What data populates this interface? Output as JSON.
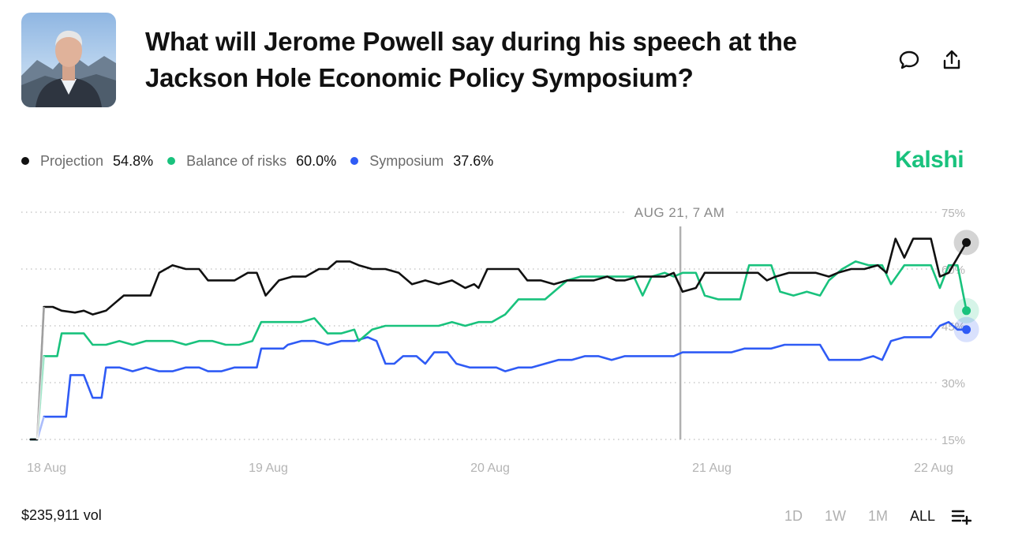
{
  "header": {
    "title": "What will Jerome Powell say during his speech at the Jackson Hole Economic Policy Symposium?",
    "comment_icon": "comment-icon",
    "share_icon": "share-icon"
  },
  "brand": "Kalshi",
  "legend": [
    {
      "name": "Projection",
      "value": "54.8%",
      "color": "#111111"
    },
    {
      "name": "Balance of risks",
      "value": "60.0%",
      "color": "#19c27d"
    },
    {
      "name": "Symposium",
      "value": "37.6%",
      "color": "#2f5bf5"
    }
  ],
  "footer": {
    "volume": "$235,911 vol",
    "ranges": [
      "1D",
      "1W",
      "1M",
      "ALL"
    ],
    "active_range": "ALL",
    "menu_icon": "list-add-icon"
  },
  "chart_data": {
    "type": "line",
    "x_unit": "days",
    "x_ticks": [
      {
        "label": "18 Aug",
        "x": 0
      },
      {
        "label": "19 Aug",
        "x": 1
      },
      {
        "label": "20 Aug",
        "x": 2
      },
      {
        "label": "21 Aug",
        "x": 3
      },
      {
        "label": "22 Aug",
        "x": 4
      }
    ],
    "y_ticks": [
      {
        "label": "15%",
        "value": 15
      },
      {
        "label": "30%",
        "value": 30
      },
      {
        "label": "45%",
        "value": 45
      },
      {
        "label": "60%",
        "value": 60
      },
      {
        "label": "75%",
        "value": 75
      }
    ],
    "ylim": [
      15,
      75
    ],
    "xlim": [
      -0.04,
      4.1
    ],
    "hover": {
      "label": "AUG 21, 7 AM",
      "x": 2.89
    },
    "series": [
      {
        "name": "Projection",
        "color": "#111111",
        "points": [
          [
            -0.04,
            15
          ],
          [
            -0.01,
            15
          ],
          [
            0.02,
            50
          ],
          [
            0.06,
            50
          ],
          [
            0.1,
            49
          ],
          [
            0.16,
            48.5
          ],
          [
            0.2,
            49
          ],
          [
            0.24,
            48
          ],
          [
            0.3,
            49
          ],
          [
            0.34,
            51
          ],
          [
            0.38,
            53
          ],
          [
            0.44,
            53
          ],
          [
            0.5,
            53
          ],
          [
            0.54,
            59
          ],
          [
            0.6,
            61
          ],
          [
            0.66,
            60
          ],
          [
            0.72,
            60
          ],
          [
            0.76,
            57
          ],
          [
            0.82,
            57
          ],
          [
            0.88,
            57
          ],
          [
            0.94,
            59
          ],
          [
            0.98,
            59
          ],
          [
            1.02,
            53
          ],
          [
            1.08,
            57
          ],
          [
            1.14,
            58
          ],
          [
            1.2,
            58
          ],
          [
            1.26,
            60
          ],
          [
            1.3,
            60
          ],
          [
            1.34,
            62
          ],
          [
            1.4,
            62
          ],
          [
            1.44,
            61
          ],
          [
            1.5,
            60
          ],
          [
            1.56,
            60
          ],
          [
            1.62,
            59
          ],
          [
            1.68,
            56
          ],
          [
            1.74,
            57
          ],
          [
            1.8,
            56
          ],
          [
            1.86,
            57
          ],
          [
            1.92,
            55
          ],
          [
            1.96,
            56
          ],
          [
            1.98,
            55
          ],
          [
            2.02,
            60
          ],
          [
            2.1,
            60
          ],
          [
            2.16,
            60
          ],
          [
            2.2,
            57
          ],
          [
            2.26,
            57
          ],
          [
            2.32,
            56
          ],
          [
            2.38,
            57
          ],
          [
            2.44,
            57
          ],
          [
            2.5,
            57
          ],
          [
            2.56,
            58
          ],
          [
            2.6,
            57
          ],
          [
            2.64,
            57
          ],
          [
            2.7,
            58
          ],
          [
            2.76,
            58
          ],
          [
            2.82,
            58
          ],
          [
            2.86,
            59
          ],
          [
            2.9,
            54
          ],
          [
            2.96,
            55
          ],
          [
            3.0,
            59
          ],
          [
            3.06,
            59
          ],
          [
            3.12,
            59
          ],
          [
            3.18,
            59
          ],
          [
            3.24,
            59
          ],
          [
            3.28,
            57
          ],
          [
            3.32,
            58
          ],
          [
            3.38,
            59
          ],
          [
            3.44,
            59
          ],
          [
            3.5,
            59
          ],
          [
            3.56,
            58
          ],
          [
            3.6,
            59
          ],
          [
            3.66,
            60
          ],
          [
            3.72,
            60
          ],
          [
            3.78,
            61
          ],
          [
            3.82,
            59
          ],
          [
            3.86,
            68
          ],
          [
            3.9,
            63
          ],
          [
            3.94,
            68
          ],
          [
            3.98,
            68
          ],
          [
            4.02,
            68
          ],
          [
            4.06,
            58
          ],
          [
            4.1,
            59
          ],
          [
            4.18,
            67
          ]
        ]
      },
      {
        "name": "Balance of risks",
        "color": "#19c27d",
        "points": [
          [
            -0.04,
            15
          ],
          [
            -0.01,
            15
          ],
          [
            0.02,
            37
          ],
          [
            0.08,
            37
          ],
          [
            0.1,
            43
          ],
          [
            0.16,
            43
          ],
          [
            0.2,
            43
          ],
          [
            0.24,
            40
          ],
          [
            0.3,
            40
          ],
          [
            0.36,
            41
          ],
          [
            0.42,
            40
          ],
          [
            0.48,
            41
          ],
          [
            0.54,
            41
          ],
          [
            0.6,
            41
          ],
          [
            0.66,
            40
          ],
          [
            0.72,
            41
          ],
          [
            0.78,
            41
          ],
          [
            0.84,
            40
          ],
          [
            0.9,
            40
          ],
          [
            0.96,
            41
          ],
          [
            1.0,
            46
          ],
          [
            1.06,
            46
          ],
          [
            1.12,
            46
          ],
          [
            1.18,
            46
          ],
          [
            1.24,
            47
          ],
          [
            1.3,
            43
          ],
          [
            1.36,
            43
          ],
          [
            1.42,
            44
          ],
          [
            1.44,
            41
          ],
          [
            1.5,
            44
          ],
          [
            1.56,
            45
          ],
          [
            1.62,
            45
          ],
          [
            1.68,
            45
          ],
          [
            1.74,
            45
          ],
          [
            1.8,
            45
          ],
          [
            1.86,
            46
          ],
          [
            1.92,
            45
          ],
          [
            1.98,
            46
          ],
          [
            2.04,
            46
          ],
          [
            2.1,
            48
          ],
          [
            2.16,
            52
          ],
          [
            2.22,
            52
          ],
          [
            2.28,
            52
          ],
          [
            2.34,
            55
          ],
          [
            2.38,
            57
          ],
          [
            2.44,
            58
          ],
          [
            2.5,
            58
          ],
          [
            2.56,
            58
          ],
          [
            2.62,
            58
          ],
          [
            2.68,
            58
          ],
          [
            2.72,
            53
          ],
          [
            2.76,
            58
          ],
          [
            2.82,
            59
          ],
          [
            2.86,
            58
          ],
          [
            2.9,
            59
          ],
          [
            2.96,
            59
          ],
          [
            3.0,
            53
          ],
          [
            3.06,
            52
          ],
          [
            3.12,
            52
          ],
          [
            3.16,
            52
          ],
          [
            3.2,
            61
          ],
          [
            3.26,
            61
          ],
          [
            3.3,
            61
          ],
          [
            3.34,
            54
          ],
          [
            3.4,
            53
          ],
          [
            3.46,
            54
          ],
          [
            3.52,
            53
          ],
          [
            3.56,
            57
          ],
          [
            3.62,
            60
          ],
          [
            3.68,
            62
          ],
          [
            3.74,
            61
          ],
          [
            3.8,
            61
          ],
          [
            3.84,
            56
          ],
          [
            3.9,
            61
          ],
          [
            3.96,
            61
          ],
          [
            4.02,
            61
          ],
          [
            4.06,
            55
          ],
          [
            4.1,
            61
          ],
          [
            4.14,
            61
          ],
          [
            4.18,
            49
          ]
        ]
      },
      {
        "name": "Symposium",
        "color": "#2f5bf5",
        "points": [
          [
            -0.04,
            15
          ],
          [
            -0.01,
            15
          ],
          [
            0.02,
            21
          ],
          [
            0.08,
            21
          ],
          [
            0.12,
            21
          ],
          [
            0.14,
            32
          ],
          [
            0.2,
            32
          ],
          [
            0.24,
            26
          ],
          [
            0.28,
            26
          ],
          [
            0.3,
            34
          ],
          [
            0.36,
            34
          ],
          [
            0.42,
            33
          ],
          [
            0.48,
            34
          ],
          [
            0.54,
            33
          ],
          [
            0.6,
            33
          ],
          [
            0.66,
            34
          ],
          [
            0.72,
            34
          ],
          [
            0.76,
            33
          ],
          [
            0.82,
            33
          ],
          [
            0.88,
            34
          ],
          [
            0.94,
            34
          ],
          [
            0.98,
            34
          ],
          [
            1.0,
            39
          ],
          [
            1.06,
            39
          ],
          [
            1.1,
            39
          ],
          [
            1.12,
            40
          ],
          [
            1.18,
            41
          ],
          [
            1.24,
            41
          ],
          [
            1.3,
            40
          ],
          [
            1.36,
            41
          ],
          [
            1.42,
            41
          ],
          [
            1.48,
            42
          ],
          [
            1.52,
            41
          ],
          [
            1.56,
            35
          ],
          [
            1.6,
            35
          ],
          [
            1.64,
            37
          ],
          [
            1.7,
            37
          ],
          [
            1.74,
            35
          ],
          [
            1.78,
            38
          ],
          [
            1.84,
            38
          ],
          [
            1.88,
            35
          ],
          [
            1.94,
            34
          ],
          [
            2.0,
            34
          ],
          [
            2.06,
            34
          ],
          [
            2.1,
            33
          ],
          [
            2.16,
            34
          ],
          [
            2.22,
            34
          ],
          [
            2.28,
            35
          ],
          [
            2.34,
            36
          ],
          [
            2.4,
            36
          ],
          [
            2.46,
            37
          ],
          [
            2.52,
            37
          ],
          [
            2.58,
            36
          ],
          [
            2.64,
            37
          ],
          [
            2.7,
            37
          ],
          [
            2.76,
            37
          ],
          [
            2.82,
            37
          ],
          [
            2.86,
            37
          ],
          [
            2.9,
            38
          ],
          [
            2.96,
            38
          ],
          [
            3.0,
            38
          ],
          [
            3.06,
            38
          ],
          [
            3.12,
            38
          ],
          [
            3.18,
            39
          ],
          [
            3.24,
            39
          ],
          [
            3.3,
            39
          ],
          [
            3.36,
            40
          ],
          [
            3.42,
            40
          ],
          [
            3.48,
            40
          ],
          [
            3.52,
            40
          ],
          [
            3.56,
            36
          ],
          [
            3.62,
            36
          ],
          [
            3.66,
            36
          ],
          [
            3.7,
            36
          ],
          [
            3.76,
            37
          ],
          [
            3.8,
            36
          ],
          [
            3.84,
            41
          ],
          [
            3.9,
            42
          ],
          [
            3.96,
            42
          ],
          [
            4.02,
            42
          ],
          [
            4.06,
            45
          ],
          [
            4.1,
            46
          ],
          [
            4.14,
            44
          ],
          [
            4.18,
            44
          ]
        ]
      }
    ],
    "legend_position": "top-left",
    "grid": true
  }
}
